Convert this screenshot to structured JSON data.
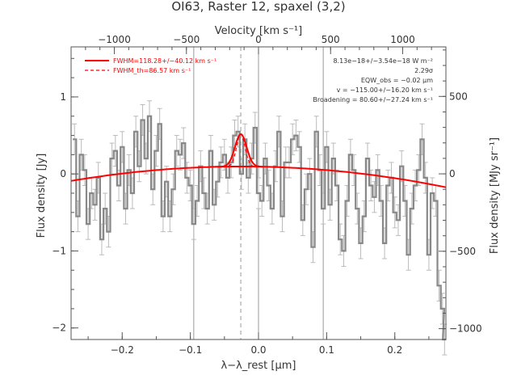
{
  "chart_data": {
    "type": "line",
    "title": "OI63, Raster 12, spaxel (3,2)",
    "xlabel": "λ−λ_rest [μm]",
    "ylabel": "Flux density [Jy]",
    "top_axis_label": "Velocity [km s⁻¹]",
    "right_axis_label": "Flux density [MJy sr⁻¹]",
    "xlim": [
      -0.275,
      0.275
    ],
    "ylim": [
      -2.15,
      1.65
    ],
    "top_xlim": [
      -1300,
      1300
    ],
    "right_ylim": [
      -1070,
      820
    ],
    "x_ticks": [
      -0.2,
      -0.1,
      0.0,
      0.1,
      0.2
    ],
    "x_tick_labels": [
      "−0.2",
      "−0.1",
      "0.0",
      "0.1",
      "0.2"
    ],
    "y_ticks": [
      -2,
      -1,
      0,
      1
    ],
    "y_tick_labels": [
      "−2",
      "−1",
      "0",
      "1"
    ],
    "top_ticks": [
      -1000,
      -500,
      0,
      500,
      1000
    ],
    "top_tick_labels": [
      "−1000",
      "−500",
      "0",
      "500",
      "1000"
    ],
    "right_ticks": [
      -1000,
      -500,
      0,
      500
    ],
    "right_tick_labels": [
      "−1000",
      "−500",
      "0",
      "500"
    ],
    "vlines_solid": [
      -0.095,
      0.0,
      0.095
    ],
    "vline_dashed": -0.026,
    "legend": {
      "placement": "top-left",
      "entries": [
        "FWHM=118.28+/−40.12 km s⁻¹",
        "FWHM_th=86.57 km s⁻¹"
      ]
    },
    "annotations": [
      "8.13e−18+/−3.54e−18 W m⁻²",
      "2.29σ",
      "EQW_obs = −0.02 μm",
      "v = −115.00+/−16.20 km s⁻¹",
      "Broadening = 80.60+/−27.24 km s⁻¹"
    ],
    "series": [
      {
        "name": "spectrum",
        "color": "#888888",
        "errorbar": 0.2,
        "x": [
          -0.27,
          -0.265,
          -0.26,
          -0.255,
          -0.25,
          -0.245,
          -0.24,
          -0.235,
          -0.23,
          -0.225,
          -0.22,
          -0.215,
          -0.21,
          -0.205,
          -0.2,
          -0.195,
          -0.19,
          -0.185,
          -0.18,
          -0.175,
          -0.17,
          -0.165,
          -0.16,
          -0.155,
          -0.15,
          -0.145,
          -0.14,
          -0.135,
          -0.13,
          -0.125,
          -0.12,
          -0.115,
          -0.11,
          -0.105,
          -0.1,
          -0.095,
          -0.09,
          -0.085,
          -0.08,
          -0.075,
          -0.07,
          -0.065,
          -0.06,
          -0.055,
          -0.05,
          -0.045,
          -0.04,
          -0.035,
          -0.03,
          -0.025,
          -0.02,
          -0.015,
          -0.01,
          -0.005,
          0.0,
          0.005,
          0.01,
          0.015,
          0.02,
          0.025,
          0.03,
          0.035,
          0.04,
          0.045,
          0.05,
          0.055,
          0.06,
          0.065,
          0.07,
          0.075,
          0.08,
          0.085,
          0.09,
          0.095,
          0.1,
          0.105,
          0.11,
          0.115,
          0.12,
          0.125,
          0.13,
          0.135,
          0.14,
          0.145,
          0.15,
          0.155,
          0.16,
          0.165,
          0.17,
          0.175,
          0.18,
          0.185,
          0.19,
          0.195,
          0.2,
          0.205,
          0.21,
          0.215,
          0.22,
          0.225,
          0.23,
          0.235,
          0.24,
          0.245,
          0.25,
          0.255,
          0.26,
          0.265,
          0.27,
          0.273
        ],
        "y": [
          0.45,
          -0.55,
          0.25,
          0.05,
          -0.65,
          -0.25,
          -0.4,
          -0.05,
          -0.85,
          -0.45,
          -0.75,
          0.2,
          0.3,
          -0.15,
          0.35,
          -0.45,
          0.05,
          -0.25,
          0.55,
          0.1,
          0.7,
          0.2,
          0.75,
          -0.2,
          0.3,
          0.65,
          -0.55,
          -0.1,
          -0.55,
          -0.2,
          0.3,
          0.25,
          0.4,
          -0.05,
          -0.15,
          -0.65,
          -0.35,
          0.1,
          -0.25,
          -0.45,
          0.3,
          -0.4,
          -0.1,
          0.15,
          0.25,
          -0.05,
          0.15,
          0.5,
          0.55,
          0.0,
          0.45,
          -0.05,
          0.2,
          0.6,
          -0.25,
          -0.35,
          0.2,
          -0.15,
          -0.45,
          0.1,
          0.55,
          -0.55,
          0.15,
          0.15,
          0.45,
          0.5,
          0.35,
          -0.6,
          -0.2,
          0.0,
          -0.95,
          0.55,
          0.05,
          -0.45,
          0.35,
          -0.4,
          0.2,
          -0.15,
          -0.85,
          -1.0,
          -0.35,
          0.25,
          0.05,
          -0.45,
          -0.9,
          -0.55,
          0.2,
          -0.15,
          -0.3,
          0.05,
          -0.35,
          -0.9,
          -0.15,
          -0.05,
          -0.5,
          -0.6,
          0.1,
          -0.35,
          -1.05,
          -0.45,
          -0.15,
          0.05,
          0.45,
          -0.05,
          -1.05,
          -0.25,
          -0.35,
          -1.45,
          -1.75,
          -2.15
        ]
      },
      {
        "name": "fit",
        "color": "#ff0000",
        "baseline_coeffs": [
          0.095,
          -0.15,
          -3.0
        ],
        "gaussian_amplitude": 0.42,
        "gaussian_center": -0.026,
        "gaussian_sigma": 0.0085
      }
    ]
  }
}
